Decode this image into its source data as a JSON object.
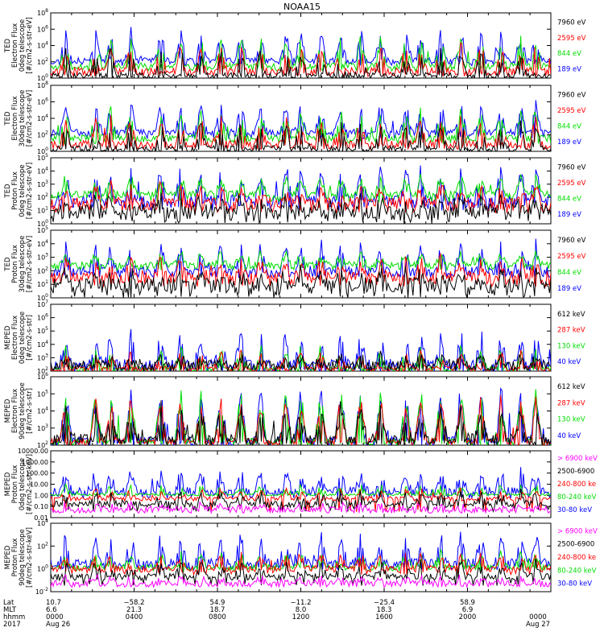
{
  "title": "NOAA15",
  "colors": {
    "black": "#000000",
    "red": "#ff0000",
    "green": "#00dd00",
    "blue": "#0000ff",
    "magenta": "#ff00ff"
  },
  "chart_data": [
    {
      "type": "line",
      "panel": 1,
      "ylabel": [
        "TED",
        "Electron Flux",
        "0deg telescope",
        "[#/cm2-s-str-eV]"
      ],
      "yticks": [
        "10^0",
        "10^2",
        "10^4",
        "10^6",
        "10^8"
      ],
      "ylim": [
        0,
        8
      ],
      "log": true,
      "legend": [
        {
          "label": "7960 eV",
          "color": "black"
        },
        {
          "label": "2595 eV",
          "color": "red"
        },
        {
          "label": "844 eV",
          "color": "green"
        },
        {
          "label": "189 eV",
          "color": "blue"
        }
      ],
      "series": [
        {
          "name": "189 eV",
          "color": "blue",
          "base": 2.1,
          "noise": 0.4,
          "peak": 4.0,
          "sparsity": 0.55,
          "ymin": 1.5
        },
        {
          "name": "844 eV",
          "color": "green",
          "base": 1.5,
          "noise": 0.4,
          "peak": 3.8,
          "sparsity": 0.8,
          "ymin": 0.8
        },
        {
          "name": "2595 eV",
          "color": "red",
          "base": 0.8,
          "noise": 0.5,
          "peak": 3.6,
          "sparsity": 0.85,
          "ymin": 0.2
        },
        {
          "name": "7960 eV",
          "color": "black",
          "base": 0.3,
          "noise": 0.4,
          "peak": 3.5,
          "sparsity": 0.9,
          "ymin": 0
        }
      ]
    },
    {
      "type": "line",
      "panel": 2,
      "ylabel": [
        "TED",
        "Electron Flux",
        "30deg telescope",
        "[#/cm2-s-str-eV]"
      ],
      "yticks": [
        "10^0",
        "10^2",
        "10^4",
        "10^6",
        "10^8"
      ],
      "ylim": [
        0,
        8
      ],
      "log": true,
      "legend": [
        {
          "label": "7960 eV",
          "color": "black"
        },
        {
          "label": "2595 eV",
          "color": "red"
        },
        {
          "label": "844 eV",
          "color": "green"
        },
        {
          "label": "189 eV",
          "color": "blue"
        }
      ],
      "series": [
        {
          "name": "189 eV",
          "color": "blue",
          "base": 2.3,
          "noise": 0.4,
          "peak": 3.8,
          "sparsity": 0.55,
          "ymin": 1.5
        },
        {
          "name": "844 eV",
          "color": "green",
          "base": 1.6,
          "noise": 0.4,
          "peak": 3.7,
          "sparsity": 0.75,
          "ymin": 0.9
        },
        {
          "name": "2595 eV",
          "color": "red",
          "base": 0.8,
          "noise": 0.5,
          "peak": 3.6,
          "sparsity": 0.85,
          "ymin": 0.2
        },
        {
          "name": "7960 eV",
          "color": "black",
          "base": 0.3,
          "noise": 0.4,
          "peak": 3.4,
          "sparsity": 0.9,
          "ymin": 0
        }
      ]
    },
    {
      "type": "line",
      "panel": 3,
      "ylabel": [
        "TED",
        "Proton Flux",
        "0deg telescope",
        "[#/cm2-s-str-eV]"
      ],
      "yticks": [
        "10^0",
        "10^1",
        "10^2",
        "10^3",
        "10^4",
        "10^5"
      ],
      "ylim": [
        0,
        5
      ],
      "log": true,
      "legend": [
        {
          "label": "7960 eV",
          "color": "black"
        },
        {
          "label": "2595 eV",
          "color": "red"
        },
        {
          "label": "844 eV",
          "color": "green"
        },
        {
          "label": "189 eV",
          "color": "blue"
        }
      ],
      "series": [
        {
          "name": "189 eV",
          "color": "blue",
          "base": 1.7,
          "noise": 0.5,
          "peak": 2.8,
          "sparsity": 0.5,
          "ymin": 1.0
        },
        {
          "name": "844 eV",
          "color": "green",
          "base": 2.2,
          "noise": 0.3,
          "peak": 1.5,
          "sparsity": 0.2,
          "ymin": 1.6
        },
        {
          "name": "2595 eV",
          "color": "red",
          "base": 1.5,
          "noise": 0.5,
          "peak": 1.5,
          "sparsity": 0.4,
          "ymin": 0.8
        },
        {
          "name": "7960 eV",
          "color": "black",
          "base": 0.9,
          "noise": 0.6,
          "peak": 1.2,
          "sparsity": 0.6,
          "ymin": 0
        }
      ]
    },
    {
      "type": "line",
      "panel": 4,
      "ylabel": [
        "TED",
        "Proton Flux",
        "30deg telescope",
        "[#/cm2-s-str-eV]"
      ],
      "yticks": [
        "10^0",
        "10^1",
        "10^2",
        "10^3",
        "10^4",
        "10^5"
      ],
      "ylim": [
        0,
        5
      ],
      "log": true,
      "legend": [
        {
          "label": "7960 eV",
          "color": "black"
        },
        {
          "label": "2595 eV",
          "color": "red"
        },
        {
          "label": "844 eV",
          "color": "green"
        },
        {
          "label": "189 eV",
          "color": "blue"
        }
      ],
      "series": [
        {
          "name": "189 eV",
          "color": "blue",
          "base": 1.9,
          "noise": 0.4,
          "peak": 2.4,
          "sparsity": 0.5,
          "ymin": 1.5
        },
        {
          "name": "844 eV",
          "color": "green",
          "base": 2.4,
          "noise": 0.3,
          "peak": 1.0,
          "sparsity": 0.2,
          "ymin": 2.0
        },
        {
          "name": "2595 eV",
          "color": "red",
          "base": 1.5,
          "noise": 0.5,
          "peak": 1.5,
          "sparsity": 0.4,
          "ymin": 0.8
        },
        {
          "name": "7960 eV",
          "color": "black",
          "base": 0.9,
          "noise": 0.6,
          "peak": 1.2,
          "sparsity": 0.6,
          "ymin": 0
        }
      ]
    },
    {
      "type": "line",
      "panel": 5,
      "ylabel": [
        "MEPED",
        "Electron Flux",
        "0deg telescope",
        "[#/cm2-s-str]"
      ],
      "yticks": [
        "10^2",
        "10^3",
        "10^4",
        "10^5",
        "10^6",
        "10^7"
      ],
      "ylim": [
        2,
        7
      ],
      "log": true,
      "legend": [
        {
          "label": "612 keV",
          "color": "black"
        },
        {
          "label": "287 keV",
          "color": "red"
        },
        {
          "label": "130 keV",
          "color": "green"
        },
        {
          "label": "40 keV",
          "color": "blue"
        }
      ],
      "series": [
        {
          "name": "40 keV",
          "color": "blue",
          "base": 2.4,
          "noise": 0.5,
          "peak": 2.6,
          "sparsity": 0.7,
          "ymin": 2.0
        },
        {
          "name": "130 keV",
          "color": "green",
          "base": 2.15,
          "noise": 0.2,
          "peak": 1.8,
          "sparsity": 0.9,
          "ymin": 2.0
        },
        {
          "name": "287 keV",
          "color": "red",
          "base": 2.15,
          "noise": 0.2,
          "peak": 1.5,
          "sparsity": 0.9,
          "ymin": 2.0
        },
        {
          "name": "612 keV",
          "color": "black",
          "base": 2.4,
          "noise": 0.4,
          "peak": 0.8,
          "sparsity": 0.6,
          "ymin": 2.0
        }
      ]
    },
    {
      "type": "line",
      "panel": 6,
      "ylabel": [
        "MEPED",
        "Electron Flux",
        "90deg telescope",
        "[#/cm2-s-str]"
      ],
      "yticks": [
        "10^2",
        "10^3",
        "10^4",
        "10^5",
        "10^6"
      ],
      "ylim": [
        2,
        6
      ],
      "log": true,
      "legend": [
        {
          "label": "612 keV",
          "color": "black"
        },
        {
          "label": "287 keV",
          "color": "red"
        },
        {
          "label": "130 keV",
          "color": "green"
        },
        {
          "label": "40 keV",
          "color": "blue"
        }
      ],
      "series": [
        {
          "name": "40 keV",
          "color": "blue",
          "base": 2.2,
          "noise": 0.3,
          "peak": 3.4,
          "sparsity": 0.3,
          "ymin": 2.0
        },
        {
          "name": "130 keV",
          "color": "green",
          "base": 2.2,
          "noise": 0.2,
          "peak": 3.2,
          "sparsity": 0.35,
          "ymin": 2.0
        },
        {
          "name": "287 keV",
          "color": "red",
          "base": 2.2,
          "noise": 0.2,
          "peak": 2.8,
          "sparsity": 0.4,
          "ymin": 2.0
        },
        {
          "name": "612 keV",
          "color": "black",
          "base": 2.3,
          "noise": 0.4,
          "peak": 2.2,
          "sparsity": 0.45,
          "ymin": 2.0
        }
      ]
    },
    {
      "type": "line",
      "panel": 7,
      "ylabel": [
        "MEPED",
        "Proton Flux",
        "0deg telescope",
        "[#/cm2-s-str-keV]"
      ],
      "yticks": [
        "0.01",
        "0.10",
        "1.00",
        "10.00",
        "100.00",
        "1000.00",
        "10000.00"
      ],
      "ylim": [
        -2,
        4
      ],
      "log": true,
      "legend": [
        {
          "label": "> 6900 keV",
          "color": "magenta"
        },
        {
          "label": "2500-6900",
          "color": "black"
        },
        {
          "label": "240-800 ke",
          "color": "red"
        },
        {
          "label": "80-240 keV",
          "color": "green"
        },
        {
          "label": "30-80 keV",
          "color": "blue"
        }
      ],
      "series": [
        {
          "name": "30-80 keV",
          "color": "blue",
          "base": 0.25,
          "noise": 0.5,
          "peak": 2.2,
          "sparsity": 0.55,
          "ymin": 0
        },
        {
          "name": "80-240 keV",
          "color": "green",
          "base": 0.05,
          "noise": 0.1,
          "peak": 1.0,
          "sparsity": 0.9,
          "ymin": 0
        },
        {
          "name": "240-800 ke",
          "color": "red",
          "base": -0.3,
          "noise": 0.2,
          "peak": 1.0,
          "sparsity": 0.85,
          "ymin": -1.5
        },
        {
          "name": "2500-6900",
          "color": "black",
          "base": -0.8,
          "noise": 0.3,
          "peak": 1.2,
          "sparsity": 0.9,
          "ymin": -1.5
        },
        {
          "name": "> 6900 keV",
          "color": "magenta",
          "base": -1.3,
          "noise": 0.3,
          "peak": 0.6,
          "sparsity": 0.92,
          "ymin": -1.6
        }
      ]
    },
    {
      "type": "line",
      "panel": 8,
      "ylabel": [
        "MEPED",
        "Proton Flux",
        "90deg telescope",
        "[#/cm2-s-str-keV]"
      ],
      "yticks": [
        "10^-2",
        "10^0",
        "10^2",
        "10^4"
      ],
      "ylim": [
        -2,
        4
      ],
      "log": true,
      "legend": [
        {
          "label": "> 6900 keV",
          "color": "magenta"
        },
        {
          "label": "2500-6900",
          "color": "black"
        },
        {
          "label": "240-800 ke",
          "color": "red"
        },
        {
          "label": "80-240 keV",
          "color": "green"
        },
        {
          "label": "30-80 keV",
          "color": "blue"
        }
      ],
      "series": [
        {
          "name": "30-80 keV",
          "color": "blue",
          "base": 0.4,
          "noise": 0.5,
          "peak": 2.8,
          "sparsity": 0.5,
          "ymin": 0
        },
        {
          "name": "80-240 keV",
          "color": "green",
          "base": 0.1,
          "noise": 0.3,
          "peak": 1.5,
          "sparsity": 0.75,
          "ymin": 0
        },
        {
          "name": "240-800 ke",
          "color": "red",
          "base": 0.0,
          "noise": 0.3,
          "peak": 1.5,
          "sparsity": 0.7,
          "ymin": -0.5
        },
        {
          "name": "2500-6900",
          "color": "black",
          "base": -0.7,
          "noise": 0.3,
          "peak": 1.5,
          "sparsity": 0.88,
          "ymin": -1.5
        },
        {
          "name": "> 6900 keV",
          "color": "magenta",
          "base": -1.3,
          "noise": 0.3,
          "peak": 0.7,
          "sparsity": 0.9,
          "ymin": -1.6
        }
      ]
    }
  ],
  "xaxis": {
    "row_labels": [
      "Lat",
      "MLT",
      "hhmm",
      "2017"
    ],
    "ticks": [
      {
        "lat": "10.7",
        "mlt": "6.6",
        "hhmm": "0000",
        "date": "Aug 26"
      },
      {
        "lat": "−58.2",
        "mlt": "21.3",
        "hhmm": "0400",
        "date": ""
      },
      {
        "lat": "54.9",
        "mlt": "18.7",
        "hhmm": "0800",
        "date": ""
      },
      {
        "lat": "−11.2",
        "mlt": "8.0",
        "hhmm": "1200",
        "date": ""
      },
      {
        "lat": "−25.4",
        "mlt": "18.3",
        "hhmm": "1600",
        "date": ""
      },
      {
        "lat": "58.9",
        "mlt": "6.9",
        "hhmm": "2000",
        "date": ""
      },
      {
        "lat": "",
        "mlt": "",
        "hhmm": "0000",
        "date": "Aug 27"
      }
    ]
  }
}
